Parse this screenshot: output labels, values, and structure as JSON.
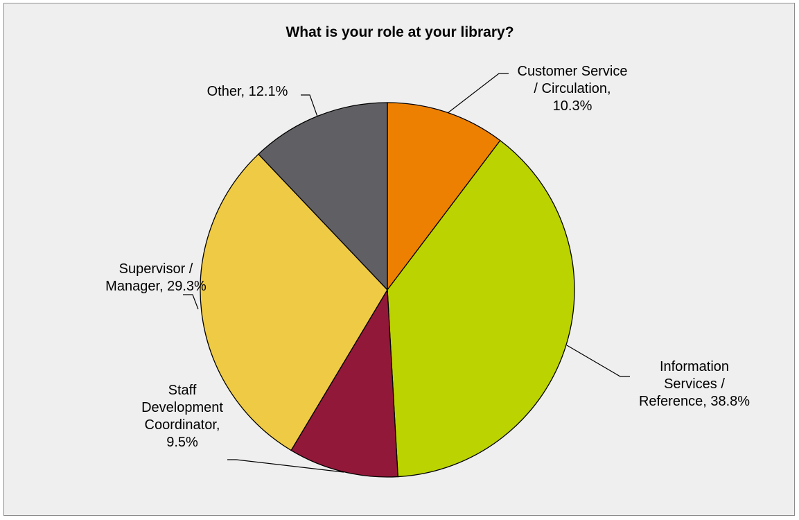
{
  "chart_data": {
    "type": "pie",
    "title": "What is your role at your library?",
    "slices": [
      {
        "name": "Customer Service / Circulation",
        "value": 10.3,
        "color": "#ee8001",
        "label_lines": [
          "Customer Service",
          "/ Circulation,",
          "10.3%"
        ]
      },
      {
        "name": "Information Services / Reference",
        "value": 38.8,
        "color": "#bbd300",
        "label_lines": [
          "Information",
          "Services /",
          "Reference, 38.8%"
        ]
      },
      {
        "name": "Staff Development Coordinator",
        "value": 9.5,
        "color": "#911839",
        "label_lines": [
          "Staff",
          "Development",
          "Coordinator,",
          "9.5%"
        ]
      },
      {
        "name": "Supervisor / Manager",
        "value": 29.3,
        "color": "#efca44",
        "label_lines": [
          "Supervisor /",
          "Manager, 29.3%"
        ]
      },
      {
        "name": "Other",
        "value": 12.1,
        "color": "#606064",
        "label_lines": [
          "Other, 12.1%"
        ]
      }
    ],
    "start_angle_deg": 0,
    "direction": "clockwise",
    "legend": "none"
  }
}
